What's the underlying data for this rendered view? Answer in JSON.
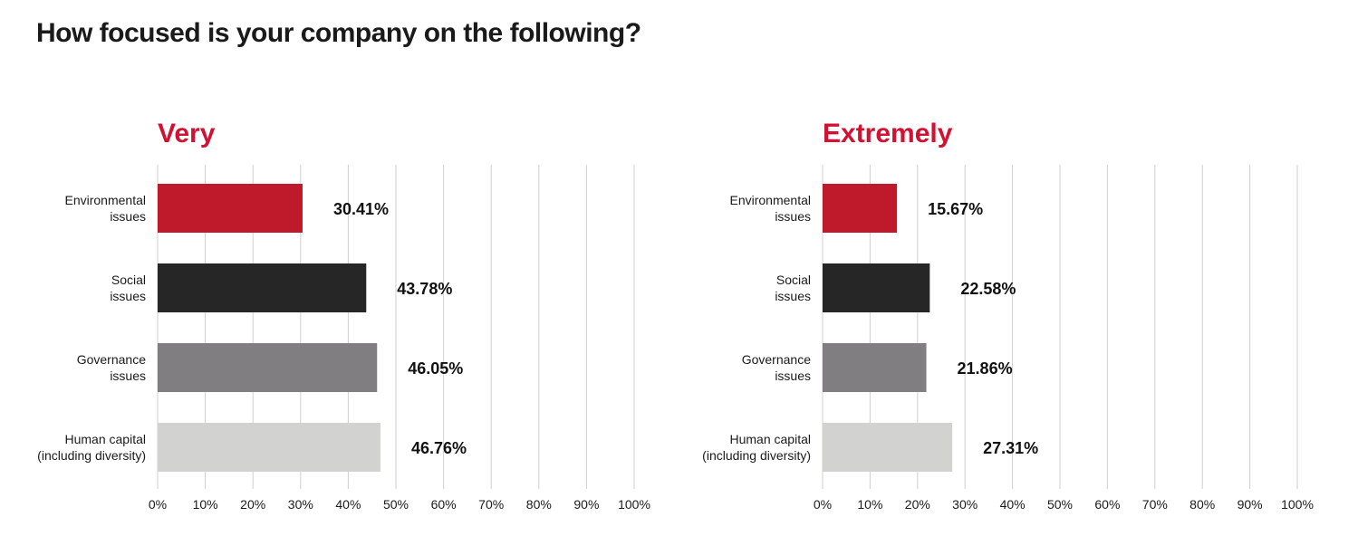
{
  "title": "How focused is your company on the following?",
  "colors": {
    "title_accent": "#d11233",
    "bars": [
      "#be1a2c",
      "#262626",
      "#807e80",
      "#d2d3d1"
    ]
  },
  "chart_data": [
    {
      "type": "bar",
      "orientation": "horizontal",
      "title": "Very",
      "categories": [
        "Environmental issues",
        "Social issues",
        "Governance issues",
        "Human capital (including diversity)"
      ],
      "category_lines": [
        [
          "Environmental",
          "issues"
        ],
        [
          "Social",
          "issues"
        ],
        [
          "Governance",
          "issues"
        ],
        [
          "Human capital",
          "(including diversity)"
        ]
      ],
      "values": [
        30.41,
        43.78,
        46.05,
        46.76
      ],
      "value_labels": [
        "30.41%",
        "43.78%",
        "46.05%",
        "46.76%"
      ],
      "xlim": [
        0,
        100
      ],
      "xticks": [
        "0%",
        "10%",
        "20%",
        "30%",
        "40%",
        "50%",
        "60%",
        "70%",
        "80%",
        "90%",
        "100%"
      ],
      "grid": true
    },
    {
      "type": "bar",
      "orientation": "horizontal",
      "title": "Extremely",
      "categories": [
        "Environmental issues",
        "Social issues",
        "Governance issues",
        "Human capital (including diversity)"
      ],
      "category_lines": [
        [
          "Environmental",
          "issues"
        ],
        [
          "Social",
          "issues"
        ],
        [
          "Governance",
          "issues"
        ],
        [
          "Human capital",
          "(including diversity)"
        ]
      ],
      "values": [
        15.67,
        22.58,
        21.86,
        27.31
      ],
      "value_labels": [
        "15.67%",
        "22.58%",
        "21.86%",
        "27.31%"
      ],
      "xlim": [
        0,
        100
      ],
      "xticks": [
        "0%",
        "10%",
        "20%",
        "30%",
        "40%",
        "50%",
        "60%",
        "70%",
        "80%",
        "90%",
        "100%"
      ],
      "grid": true
    }
  ]
}
